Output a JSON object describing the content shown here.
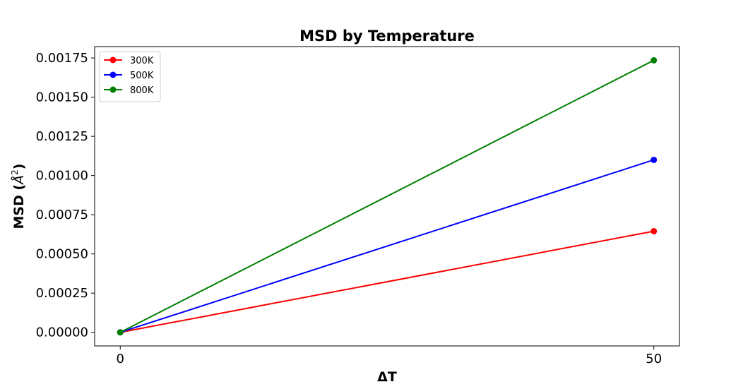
{
  "chart_data": {
    "type": "line",
    "title": "MSD by Temperature",
    "xlabel": "ΔT",
    "ylabel_main": "MSD (",
    "ylabel_symbol": "Å",
    "ylabel_sup": "2",
    "ylabel_close": ")",
    "x": [
      0,
      50
    ],
    "x_ticks": [
      0,
      50
    ],
    "x_tick_labels": [
      "0",
      "50"
    ],
    "xlim": [
      -2.4,
      52.4
    ],
    "y_ticks": [
      0,
      0.00025,
      0.0005,
      0.00075,
      0.001,
      0.00125,
      0.0015,
      0.00175
    ],
    "y_tick_labels": [
      "0.00000",
      "0.00025",
      "0.00050",
      "0.00075",
      "0.00100",
      "0.00125",
      "0.00150",
      "0.00175"
    ],
    "ylim": [
      -8.68e-05,
      0.0018225
    ],
    "grid": false,
    "legend_position": "top-left",
    "series": [
      {
        "name": "300K",
        "color": "#ff0000",
        "values": [
          0,
          0.000645
        ]
      },
      {
        "name": "500K",
        "color": "#0000ff",
        "values": [
          0,
          0.0011
        ]
      },
      {
        "name": "800K",
        "color": "#008000",
        "values": [
          0,
          0.001735
        ]
      }
    ]
  }
}
